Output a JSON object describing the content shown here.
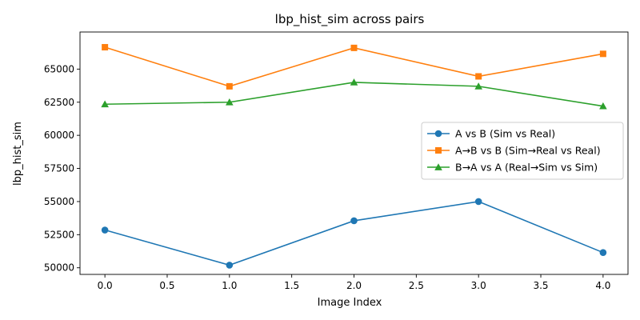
{
  "chart_data": {
    "type": "line",
    "title": "lbp_hist_sim across pairs",
    "xlabel": "Image Index",
    "ylabel": "lbp_hist_sim",
    "x": [
      0,
      1,
      2,
      3,
      4
    ],
    "xlim": [
      -0.2,
      4.2
    ],
    "ylim": [
      49500,
      67800
    ],
    "xticks": [
      0.0,
      0.5,
      1.0,
      1.5,
      2.0,
      2.5,
      3.0,
      3.5,
      4.0
    ],
    "xtick_labels": [
      "0.0",
      "0.5",
      "1.0",
      "1.5",
      "2.0",
      "2.5",
      "3.0",
      "3.5",
      "4.0"
    ],
    "yticks": [
      50000,
      52500,
      55000,
      57500,
      60000,
      62500,
      65000
    ],
    "ytick_labels": [
      "50000",
      "52500",
      "55000",
      "57500",
      "60000",
      "62500",
      "65000"
    ],
    "grid": false,
    "legend_position": "center-right",
    "series": [
      {
        "name": "A vs B (Sim vs Real)",
        "values": [
          52850,
          50200,
          53550,
          55000,
          51150
        ],
        "color": "#1f77b4",
        "marker": "circle"
      },
      {
        "name": "A→B vs B (Sim→Real vs Real)",
        "values": [
          66650,
          63700,
          66600,
          64450,
          66150
        ],
        "color": "#ff7f0e",
        "marker": "square"
      },
      {
        "name": "B→A vs A (Real→Sim vs Sim)",
        "values": [
          62350,
          62500,
          64000,
          63700,
          62200
        ],
        "color": "#2ca02c",
        "marker": "triangle"
      }
    ]
  }
}
